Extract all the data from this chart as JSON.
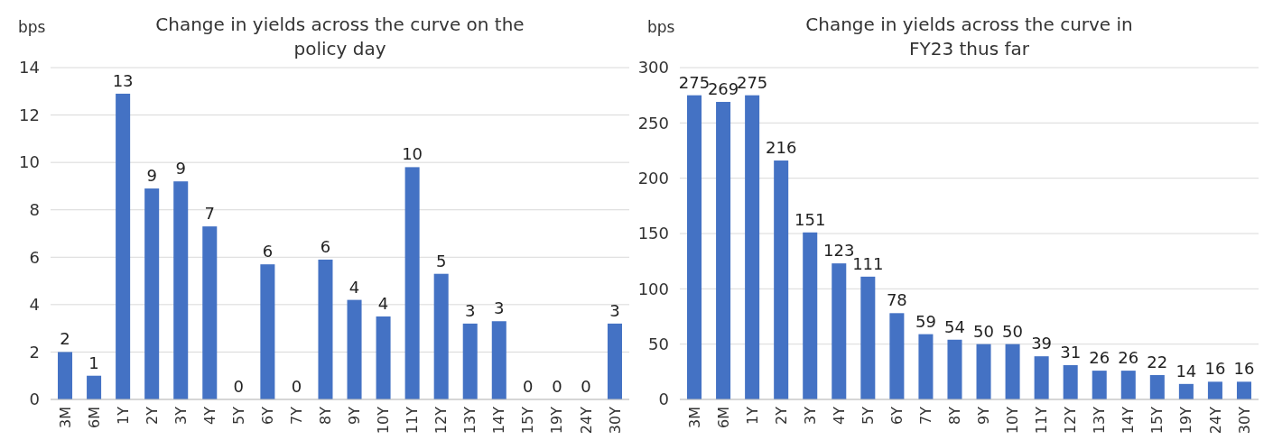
{
  "chart_data": [
    {
      "type": "bar",
      "title": "Change in yields across the curve on the policy day",
      "ylabel": "bps",
      "categories": [
        "3M",
        "6M",
        "1Y",
        "2Y",
        "3Y",
        "4Y",
        "5Y",
        "6Y",
        "7Y",
        "8Y",
        "9Y",
        "10Y",
        "11Y",
        "12Y",
        "13Y",
        "14Y",
        "15Y",
        "19Y",
        "24Y",
        "30Y"
      ],
      "values": [
        2.0,
        1.0,
        12.9,
        8.9,
        9.2,
        7.3,
        0,
        5.7,
        0,
        5.9,
        4.2,
        3.5,
        9.8,
        5.3,
        3.2,
        3.3,
        0,
        0,
        0,
        3.2
      ],
      "value_labels": [
        "2",
        "1",
        "13",
        "9",
        "9",
        "7",
        "0",
        "6",
        "0",
        "6",
        "4",
        "4",
        "10",
        "5",
        "3",
        "3",
        "0",
        "0",
        "0",
        "3"
      ],
      "color": "#4472c4",
      "ylim": [
        0,
        14
      ],
      "yticks": [
        0,
        2,
        4,
        6,
        8,
        10,
        12,
        14
      ],
      "grid": "y"
    },
    {
      "type": "bar",
      "title": "Change in yields across the curve in FY23 thus far",
      "ylabel": "bps",
      "categories": [
        "3M",
        "6M",
        "1Y",
        "2Y",
        "3Y",
        "4Y",
        "5Y",
        "6Y",
        "7Y",
        "8Y",
        "9Y",
        "10Y",
        "11Y",
        "12Y",
        "13Y",
        "14Y",
        "15Y",
        "19Y",
        "24Y",
        "30Y"
      ],
      "values": [
        275,
        269,
        275,
        216,
        151,
        123,
        111,
        78,
        59,
        54,
        50,
        50,
        39,
        31,
        26,
        26,
        22,
        14,
        16,
        16
      ],
      "data_labels": true,
      "color": "#4472c4",
      "ylim": [
        0,
        300
      ],
      "yticks": [
        0,
        50,
        100,
        150,
        200,
        250,
        300
      ],
      "grid": "y"
    }
  ]
}
